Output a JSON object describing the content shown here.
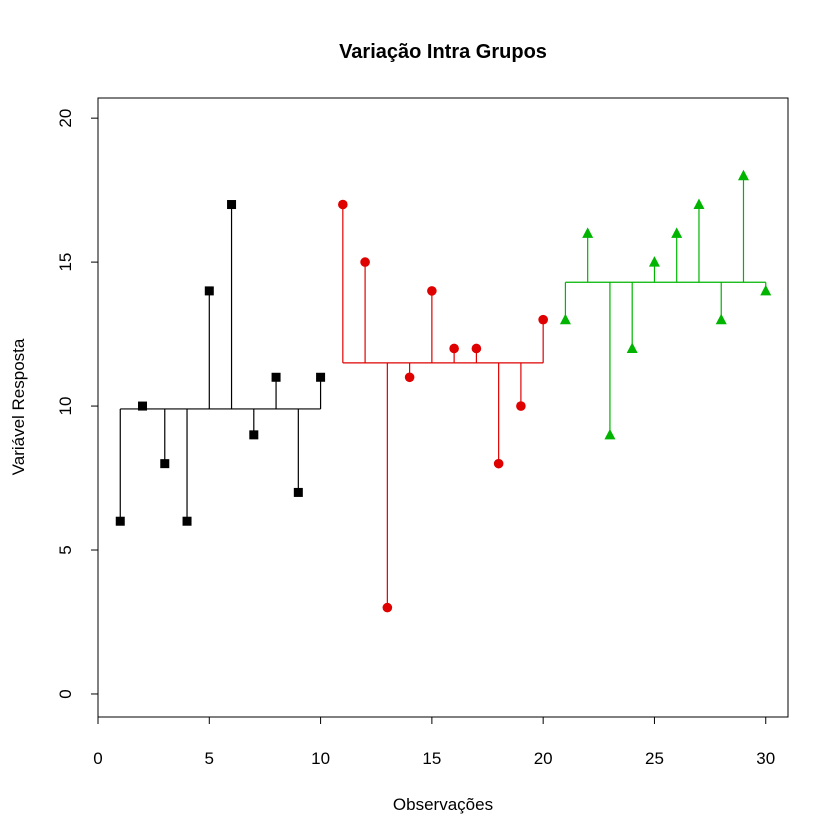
{
  "chart_data": {
    "type": "scatter",
    "title": "Variação Intra Grupos",
    "xlabel": "Observações",
    "ylabel": "Variável Resposta",
    "xlim": [
      0,
      31
    ],
    "ylim": [
      -0.8,
      20.7
    ],
    "x_ticks": [
      "0",
      "5",
      "10",
      "15",
      "20",
      "25",
      "30"
    ],
    "y_ticks": [
      "0",
      "5",
      "10",
      "15",
      "20"
    ],
    "grid": false,
    "series": [
      {
        "color": "#000000",
        "marker": "square",
        "mean": 9.9,
        "x": [
          1,
          2,
          3,
          4,
          5,
          6,
          7,
          8,
          9,
          10
        ],
        "values": [
          6,
          10,
          8,
          6,
          14,
          17,
          9,
          11,
          7,
          11
        ]
      },
      {
        "color": "#df0000",
        "marker": "circle",
        "mean": 11.5,
        "x": [
          11,
          12,
          13,
          14,
          15,
          16,
          17,
          18,
          19,
          20
        ],
        "values": [
          17,
          15,
          3,
          11,
          14,
          12,
          12,
          8,
          10,
          13
        ]
      },
      {
        "color": "#00b400",
        "marker": "triangle",
        "mean": 14.3,
        "x": [
          21,
          22,
          23,
          24,
          25,
          26,
          27,
          28,
          29,
          30
        ],
        "values": [
          13,
          16,
          9,
          12,
          15,
          16,
          17,
          13,
          18,
          14
        ]
      }
    ]
  }
}
